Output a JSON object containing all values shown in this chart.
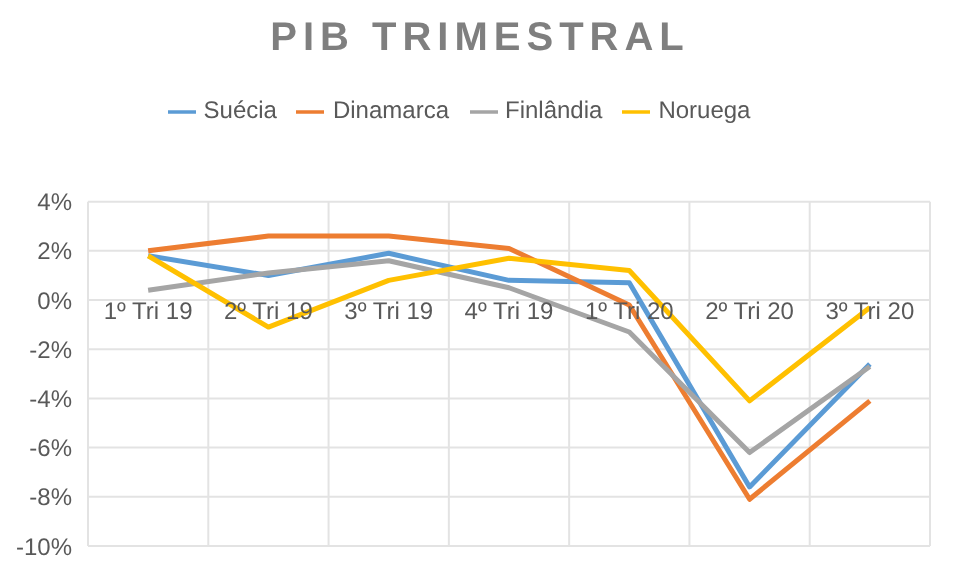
{
  "chart_data": {
    "type": "line",
    "title": "PIB TRIMESTRAL",
    "categories": [
      "1º Tri 19",
      "2º Tri 19",
      "3º Tri 19",
      "4º Tri 19",
      "1º Tri 20",
      "2º Tri 20",
      "3º Tri 20"
    ],
    "series": [
      {
        "name": "Suécia",
        "color": "#5b9bd5",
        "values": [
          1.8,
          1.0,
          1.9,
          0.8,
          0.7,
          -7.6,
          -2.6
        ]
      },
      {
        "name": "Dinamarca",
        "color": "#ed7d31",
        "values": [
          2.0,
          2.6,
          2.6,
          2.1,
          -0.2,
          -8.1,
          -4.1
        ]
      },
      {
        "name": "Finlândia",
        "color": "#a5a5a5",
        "values": [
          0.4,
          1.1,
          1.6,
          0.5,
          -1.3,
          -6.2,
          -2.7
        ]
      },
      {
        "name": "Noruega",
        "color": "#ffc000",
        "values": [
          1.8,
          -1.1,
          0.8,
          1.7,
          1.2,
          -4.1,
          -0.3
        ]
      }
    ],
    "ylim": [
      -10,
      4
    ],
    "yticks": [
      {
        "value": -10,
        "label": "-10%"
      },
      {
        "value": -8,
        "label": "-8%"
      },
      {
        "value": -6,
        "label": "-6%"
      },
      {
        "value": -4,
        "label": "-4%"
      },
      {
        "value": -2,
        "label": "-2%"
      },
      {
        "value": 0,
        "label": "0%"
      },
      {
        "value": 2,
        "label": "2%"
      },
      {
        "value": 4,
        "label": "4%"
      }
    ],
    "grid": true,
    "legend": "top",
    "marker": "none",
    "line_style": "solid"
  }
}
